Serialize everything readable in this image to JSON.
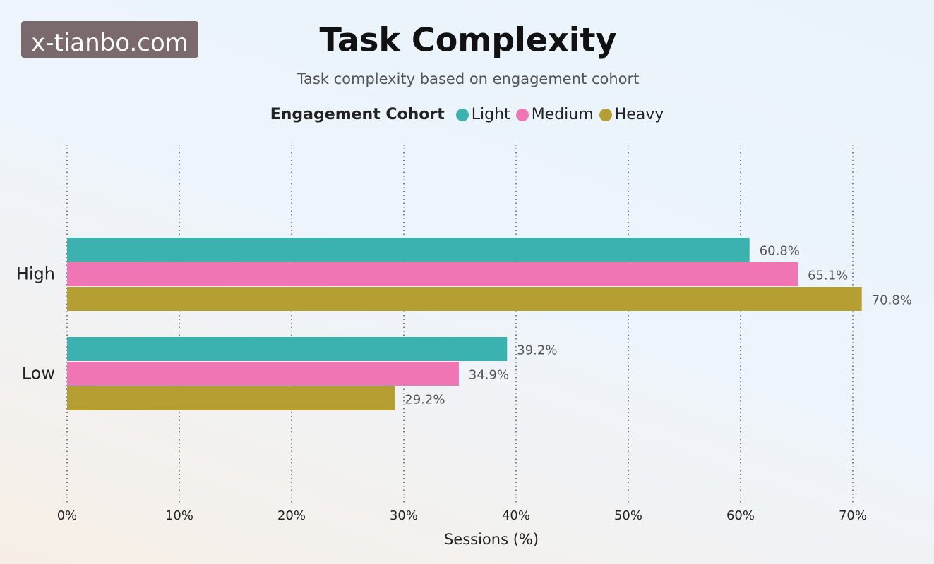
{
  "watermark": "x-tianbo.com",
  "chart_data": {
    "type": "hbar",
    "title": "Task Complexity",
    "subtitle": "Task complexity based on engagement cohort",
    "legend_title": "Engagement Cohort",
    "x_label": "Sessions (%)",
    "categories": [
      "High",
      "Low"
    ],
    "series": [
      {
        "name": "Light",
        "color": "#3bb2b0",
        "values": [
          60.8,
          39.2
        ],
        "value_labels": [
          "60.8%",
          "39.2%"
        ]
      },
      {
        "name": "Medium",
        "color": "#f075b4",
        "values": [
          65.1,
          34.9
        ],
        "value_labels": [
          "65.1%",
          "34.9%"
        ]
      },
      {
        "name": "Heavy",
        "color": "#b59e32",
        "values": [
          70.8,
          29.2
        ],
        "value_labels": [
          "70.8%",
          "29.2%"
        ]
      }
    ],
    "xlim": [
      0,
      72
    ],
    "xticks": [
      {
        "value": 0,
        "label": "0%"
      },
      {
        "value": 10,
        "label": "10%"
      },
      {
        "value": 20,
        "label": "20%"
      },
      {
        "value": 30,
        "label": "30%"
      },
      {
        "value": 40,
        "label": "40%"
      },
      {
        "value": 50,
        "label": "50%"
      },
      {
        "value": 60,
        "label": "60%"
      },
      {
        "value": 70,
        "label": "70%"
      }
    ],
    "grid": true
  }
}
